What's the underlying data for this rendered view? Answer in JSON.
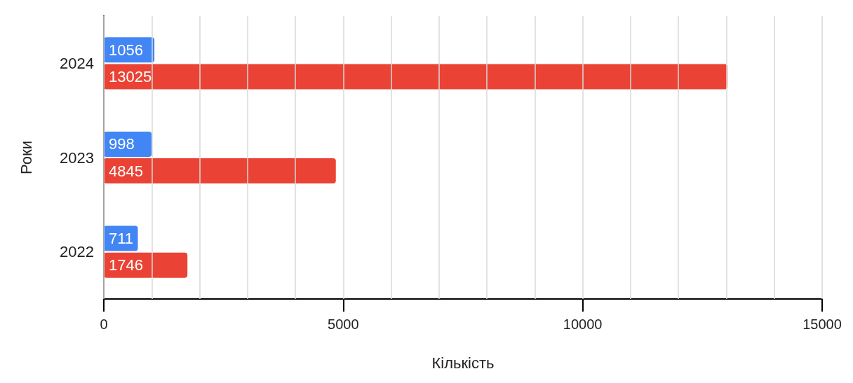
{
  "chart_data": {
    "type": "bar",
    "orientation": "horizontal",
    "xlabel": "Кількість",
    "ylabel": "Роки",
    "categories": [
      "2024",
      "2023",
      "2022"
    ],
    "series": [
      {
        "color": "#4285f4",
        "values": [
          1056,
          998,
          711
        ]
      },
      {
        "color": "#ea4335",
        "values": [
          13025,
          4845,
          1746
        ]
      }
    ],
    "xlim": [
      0,
      15000
    ],
    "xticks": [
      0,
      {
        "value": 1000,
        "label": null
      },
      {
        "value": 2000,
        "label": null
      },
      {
        "value": 3000,
        "label": null
      },
      {
        "value": 4000,
        "label": null
      },
      5000,
      {
        "value": 6000,
        "label": null
      },
      {
        "value": 7000,
        "label": null
      },
      {
        "value": 8000,
        "label": null
      },
      {
        "value": 9000,
        "label": null
      },
      10000,
      {
        "value": 11000,
        "label": null
      },
      {
        "value": 12000,
        "label": null
      },
      {
        "value": 13000,
        "label": null
      },
      {
        "value": 14000,
        "label": null
      },
      15000
    ],
    "grid": "x",
    "data_labels": true
  }
}
